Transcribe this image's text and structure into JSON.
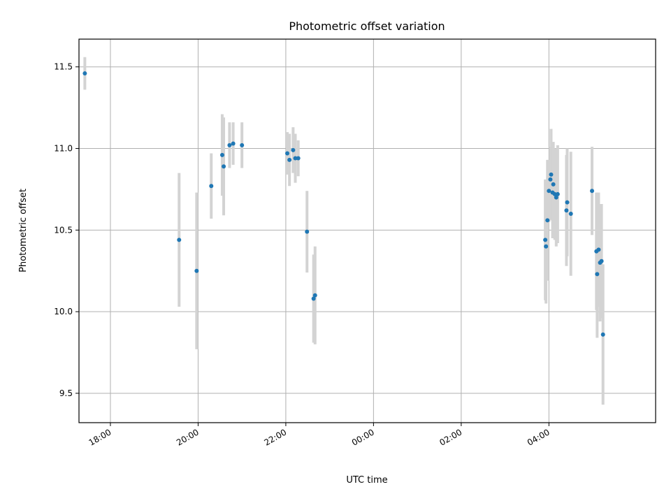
{
  "chart_data": {
    "type": "scatter",
    "title": "Photometric offset variation",
    "xlabel": "UTC time",
    "ylabel": "Photometric offset",
    "x_ticks": [
      "18:00",
      "20:00",
      "22:00",
      "00:00",
      "02:00",
      "04:00"
    ],
    "y_ticks": [
      "9.5",
      "10.0",
      "10.5",
      "11.0",
      "11.5"
    ],
    "xlim": [
      "17:17",
      "06:26"
    ],
    "ylim": [
      9.32,
      11.67
    ],
    "grid": true,
    "errorbar_color": "#d3d3d3",
    "point_color": "#1f77b4",
    "points": [
      {
        "x": "17:25",
        "y": 11.46,
        "err": 0.1
      },
      {
        "x": "19:34",
        "y": 10.44,
        "err": 0.41
      },
      {
        "x": "19:58",
        "y": 10.25,
        "err": 0.48
      },
      {
        "x": "20:18",
        "y": 10.77,
        "err": 0.2
      },
      {
        "x": "20:33",
        "y": 10.96,
        "err": 0.25
      },
      {
        "x": "20:35",
        "y": 10.89,
        "err": 0.3
      },
      {
        "x": "20:43",
        "y": 11.02,
        "err": 0.14
      },
      {
        "x": "20:48",
        "y": 11.03,
        "err": 0.13
      },
      {
        "x": "21:00",
        "y": 11.02,
        "err": 0.14
      },
      {
        "x": "22:02",
        "y": 10.97,
        "err": 0.13
      },
      {
        "x": "22:05",
        "y": 10.93,
        "err": 0.16
      },
      {
        "x": "22:10",
        "y": 10.99,
        "err": 0.14
      },
      {
        "x": "22:13",
        "y": 10.94,
        "err": 0.15
      },
      {
        "x": "22:17",
        "y": 10.94,
        "err": 0.11
      },
      {
        "x": "22:29",
        "y": 10.49,
        "err": 0.25
      },
      {
        "x": "22:38",
        "y": 10.08,
        "err": 0.27
      },
      {
        "x": "22:40",
        "y": 10.1,
        "err": 0.3
      },
      {
        "x": "03:55",
        "y": 10.44,
        "err": 0.37
      },
      {
        "x": "03:56",
        "y": 10.4,
        "err": 0.35
      },
      {
        "x": "03:58",
        "y": 10.56,
        "err": 0.37
      },
      {
        "x": "04:00",
        "y": 10.74,
        "err": 0.19
      },
      {
        "x": "04:02",
        "y": 10.81,
        "err": 0.2
      },
      {
        "x": "04:03",
        "y": 10.84,
        "err": 0.28
      },
      {
        "x": "04:05",
        "y": 10.73,
        "err": 0.28
      },
      {
        "x": "04:06",
        "y": 10.78,
        "err": 0.26
      },
      {
        "x": "04:08",
        "y": 10.72,
        "err": 0.28
      },
      {
        "x": "04:10",
        "y": 10.7,
        "err": 0.3
      },
      {
        "x": "04:12",
        "y": 10.72,
        "err": 0.3
      },
      {
        "x": "04:24",
        "y": 10.62,
        "err": 0.34
      },
      {
        "x": "04:25",
        "y": 10.67,
        "err": 0.33
      },
      {
        "x": "04:30",
        "y": 10.6,
        "err": 0.38
      },
      {
        "x": "04:59",
        "y": 10.74,
        "err": 0.27
      },
      {
        "x": "05:05",
        "y": 10.37,
        "err": 0.36
      },
      {
        "x": "05:06",
        "y": 10.23,
        "err": 0.39
      },
      {
        "x": "05:08",
        "y": 10.38,
        "err": 0.35
      },
      {
        "x": "05:10",
        "y": 10.3,
        "err": 0.36
      },
      {
        "x": "05:12",
        "y": 10.31,
        "err": 0.35
      },
      {
        "x": "05:14",
        "y": 9.86,
        "err": 0.43
      }
    ]
  }
}
